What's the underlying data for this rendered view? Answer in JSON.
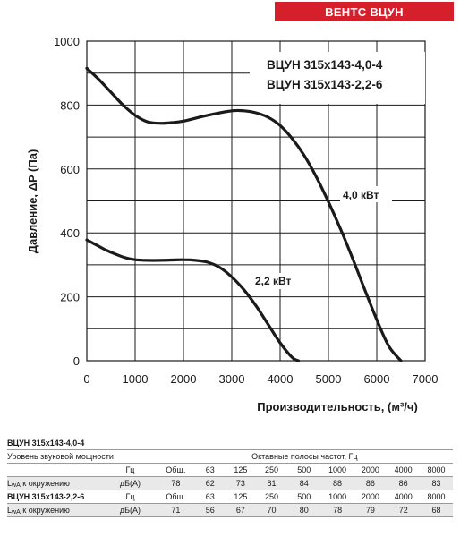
{
  "brand": "ВЕНТС ВЦУН",
  "colors": {
    "brand": "#d5202c",
    "curve": "#1a1a1a",
    "grid": "#1a1a1a",
    "row_fill": "#e9e9e9"
  },
  "chart_data": {
    "type": "line",
    "title": "",
    "xlabel": "Производительность, (м³/ч)",
    "ylabel": "Давление, ΔP (Па)",
    "xlim": [
      0,
      7000
    ],
    "ylim": [
      0,
      1000
    ],
    "xticks": [
      0,
      1000,
      2000,
      3000,
      4000,
      5000,
      6000,
      7000
    ],
    "yticks": [
      0,
      200,
      400,
      600,
      800,
      1000
    ],
    "grid": true,
    "legend": [
      "ВЦУН 315x143-4,0-4",
      "ВЦУН 315x143-2,2-6"
    ],
    "legend_position": "top-right",
    "series": [
      {
        "name": "4,0 кВт",
        "x": [
          0,
          250,
          500,
          750,
          1000,
          1250,
          1500,
          1750,
          2000,
          2500,
          3000,
          3250,
          3500,
          3750,
          4000,
          4250,
          4500,
          4750,
          5000,
          5250,
          5500,
          5750,
          6000,
          6250,
          6500
        ],
        "y": [
          915,
          880,
          840,
          800,
          768,
          748,
          743,
          745,
          750,
          768,
          782,
          782,
          776,
          762,
          736,
          695,
          642,
          575,
          497,
          412,
          320,
          223,
          128,
          45,
          0
        ]
      },
      {
        "name": "2,2 кВт",
        "x": [
          0,
          200,
          400,
          600,
          800,
          1000,
          1250,
          1500,
          1750,
          2000,
          2250,
          2500,
          2750,
          3000,
          3250,
          3500,
          3750,
          4000,
          4250,
          4380
        ],
        "y": [
          378,
          362,
          346,
          333,
          322,
          316,
          314,
          314,
          315,
          316,
          314,
          308,
          292,
          262,
          222,
          172,
          114,
          56,
          10,
          0
        ]
      }
    ],
    "annotations": [
      "4,0 кВт",
      "2,2 кВт"
    ]
  },
  "sound_table": {
    "model_a": "ВЦУН 315х143-4,0-4",
    "model_b": "ВЦУН 315х143-2,2-6",
    "header_left": "Уровень звуковой мощности",
    "header_right": "Октавные полосы частот, Гц",
    "hz_label": "Гц",
    "row_label_main": "L",
    "row_label_sub": "wA",
    "row_label_rest": " к окружению",
    "unit": "дБ(А)",
    "freqs": [
      "Общ.",
      "63",
      "125",
      "250",
      "500",
      "1000",
      "2000",
      "4000",
      "8000"
    ],
    "values_a": [
      "78",
      "62",
      "73",
      "81",
      "84",
      "88",
      "86",
      "86",
      "83"
    ],
    "values_b": [
      "71",
      "56",
      "67",
      "70",
      "80",
      "78",
      "79",
      "72",
      "68"
    ]
  }
}
